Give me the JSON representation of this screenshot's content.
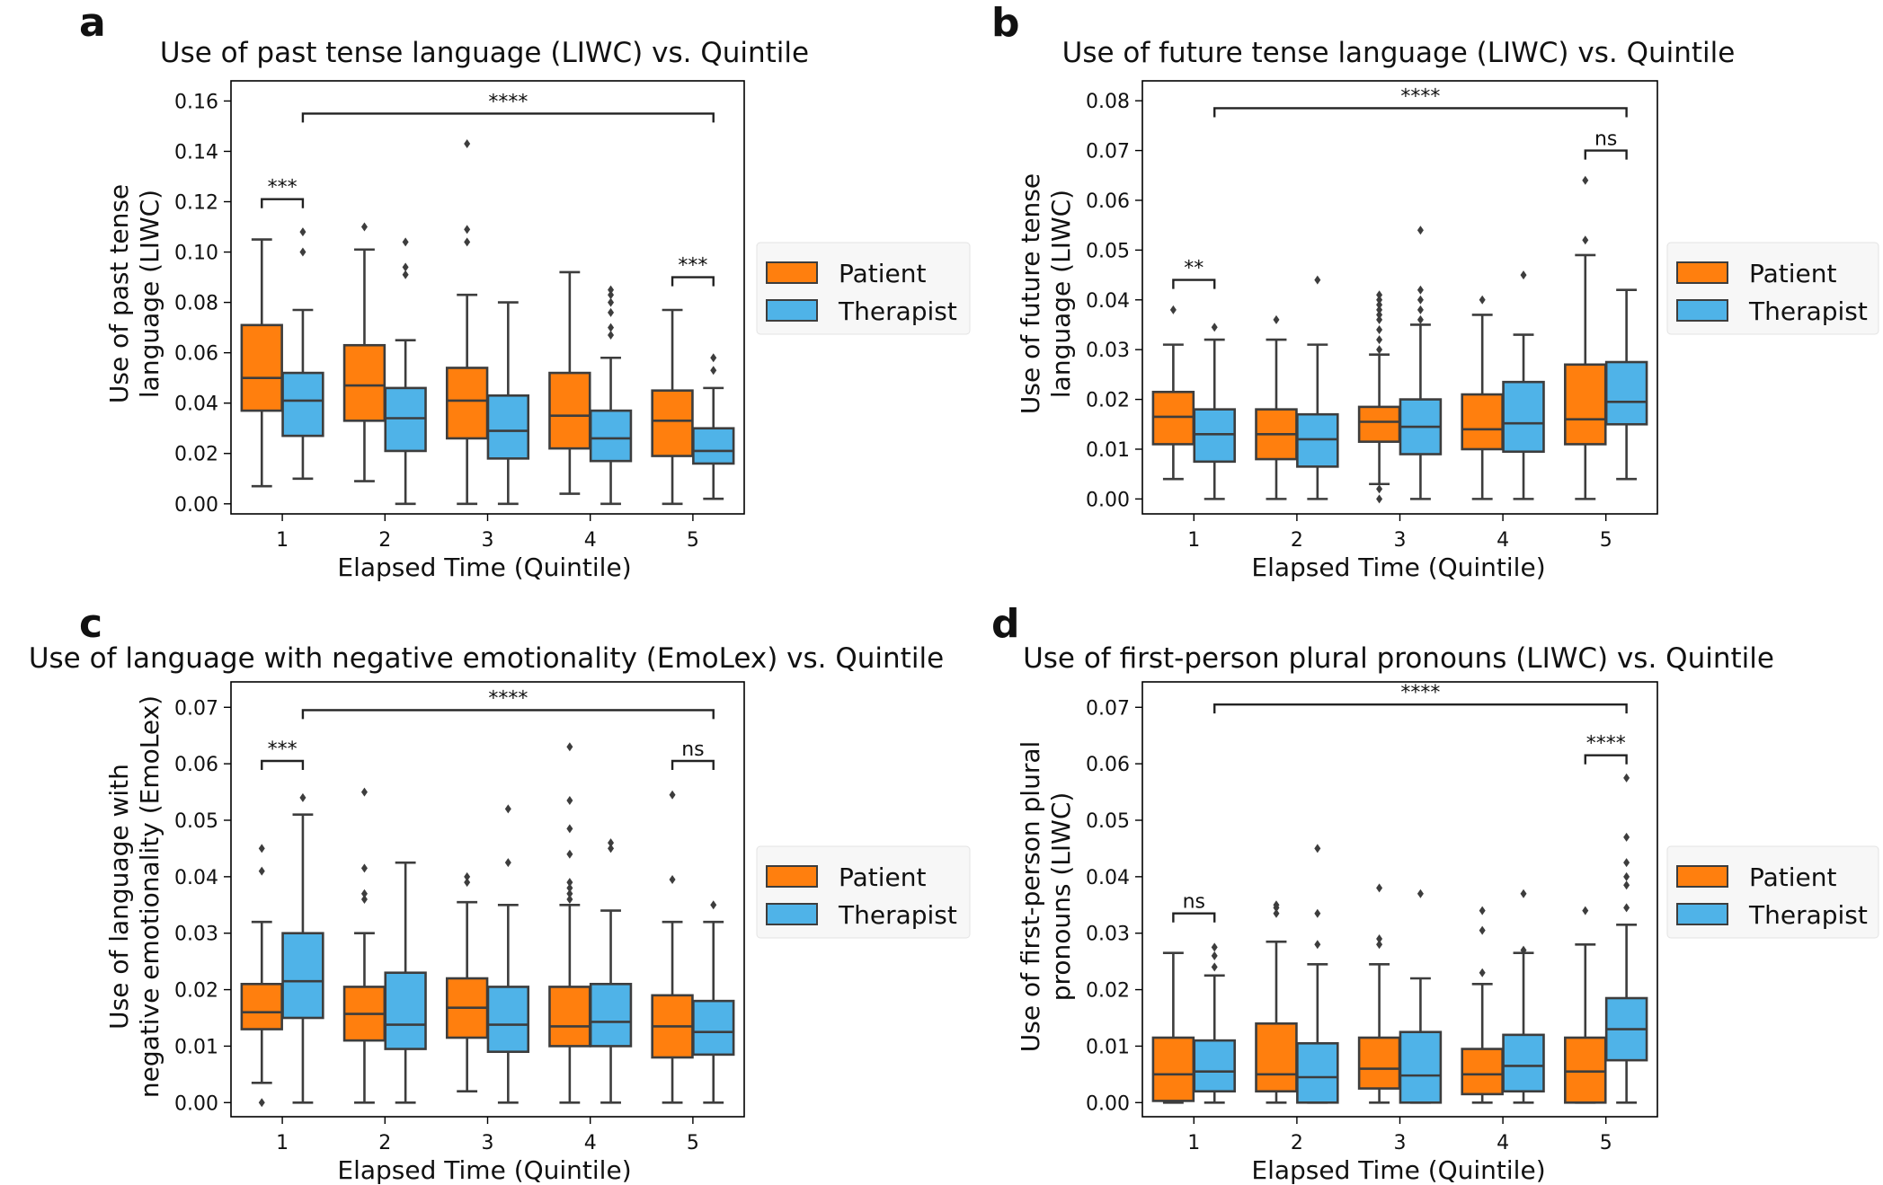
{
  "figure": {
    "colors": {
      "Patient": "#ff7f0e",
      "Therapist": "#4fb3e8",
      "line": "#3d3d3d"
    },
    "legend_labels": [
      "Patient",
      "Therapist"
    ]
  },
  "chart_data": [
    {
      "panel": "a",
      "type": "box",
      "title": "Use of past tense language (LIWC) vs. Quintile",
      "xlabel": "Elapsed Time (Quintile)",
      "ylabel": [
        "Use of past tense",
        "language (LIWC)"
      ],
      "ylim": [
        -0.004,
        0.168
      ],
      "yticks": [
        0.0,
        0.02,
        0.04,
        0.06,
        0.08,
        0.1,
        0.12,
        0.14,
        0.16
      ],
      "tick_decimals": 2,
      "categories": [
        "1",
        "2",
        "3",
        "4",
        "5"
      ],
      "series": [
        {
          "name": "Patient",
          "boxes": [
            {
              "whislo": 0.007,
              "q1": 0.037,
              "med": 0.05,
              "q3": 0.071,
              "whishi": 0.105,
              "fliers": []
            },
            {
              "whislo": 0.009,
              "q1": 0.033,
              "med": 0.047,
              "q3": 0.063,
              "whishi": 0.101,
              "fliers": [
                0.11
              ]
            },
            {
              "whislo": 0.0,
              "q1": 0.026,
              "med": 0.041,
              "q3": 0.054,
              "whishi": 0.083,
              "fliers": [
                0.104,
                0.109,
                0.143
              ]
            },
            {
              "whislo": 0.004,
              "q1": 0.022,
              "med": 0.035,
              "q3": 0.052,
              "whishi": 0.092,
              "fliers": []
            },
            {
              "whislo": 0.0,
              "q1": 0.019,
              "med": 0.033,
              "q3": 0.045,
              "whishi": 0.077,
              "fliers": []
            }
          ]
        },
        {
          "name": "Therapist",
          "boxes": [
            {
              "whislo": 0.01,
              "q1": 0.027,
              "med": 0.041,
              "q3": 0.052,
              "whishi": 0.077,
              "fliers": [
                0.1,
                0.108
              ]
            },
            {
              "whislo": 0.0,
              "q1": 0.021,
              "med": 0.034,
              "q3": 0.046,
              "whishi": 0.065,
              "fliers": [
                0.091,
                0.094,
                0.104
              ]
            },
            {
              "whislo": 0.0,
              "q1": 0.018,
              "med": 0.029,
              "q3": 0.043,
              "whishi": 0.08,
              "fliers": []
            },
            {
              "whislo": 0.0,
              "q1": 0.017,
              "med": 0.026,
              "q3": 0.037,
              "whishi": 0.058,
              "fliers": [
                0.067,
                0.07,
                0.076,
                0.08,
                0.083,
                0.085
              ]
            },
            {
              "whislo": 0.002,
              "q1": 0.016,
              "med": 0.021,
              "q3": 0.03,
              "whishi": 0.046,
              "fliers": [
                0.053,
                0.058
              ]
            }
          ]
        }
      ],
      "annotations": [
        {
          "from": "1-Therapist",
          "to": "5-Therapist",
          "y": 0.155,
          "label": "****"
        },
        {
          "from": "1-Patient",
          "to": "1-Therapist",
          "y": 0.121,
          "label": "***"
        },
        {
          "from": "5-Patient",
          "to": "5-Therapist",
          "y": 0.09,
          "label": "***"
        }
      ]
    },
    {
      "panel": "b",
      "type": "box",
      "title": "Use of future tense language (LIWC) vs. Quintile",
      "xlabel": "Elapsed Time (Quintile)",
      "ylabel": [
        "Use of future tense",
        "language (LIWC)"
      ],
      "ylim": [
        -0.003,
        0.084
      ],
      "yticks": [
        0.0,
        0.01,
        0.02,
        0.03,
        0.04,
        0.05,
        0.06,
        0.07,
        0.08
      ],
      "tick_decimals": 2,
      "categories": [
        "1",
        "2",
        "3",
        "4",
        "5"
      ],
      "series": [
        {
          "name": "Patient",
          "boxes": [
            {
              "whislo": 0.004,
              "q1": 0.011,
              "med": 0.0165,
              "q3": 0.0215,
              "whishi": 0.031,
              "fliers": [
                0.038
              ]
            },
            {
              "whislo": 0.0,
              "q1": 0.008,
              "med": 0.013,
              "q3": 0.018,
              "whishi": 0.032,
              "fliers": [
                0.036
              ]
            },
            {
              "whislo": 0.003,
              "q1": 0.0115,
              "med": 0.0155,
              "q3": 0.0185,
              "whishi": 0.029,
              "fliers": [
                0.0,
                0.002,
                0.03,
                0.032,
                0.034,
                0.036,
                0.037,
                0.038,
                0.039,
                0.04,
                0.041
              ]
            },
            {
              "whislo": 0.0,
              "q1": 0.01,
              "med": 0.014,
              "q3": 0.021,
              "whishi": 0.037,
              "fliers": [
                0.04
              ]
            },
            {
              "whislo": 0.0,
              "q1": 0.011,
              "med": 0.016,
              "q3": 0.027,
              "whishi": 0.049,
              "fliers": [
                0.052,
                0.064
              ]
            }
          ]
        },
        {
          "name": "Therapist",
          "boxes": [
            {
              "whislo": 0.0,
              "q1": 0.0075,
              "med": 0.013,
              "q3": 0.018,
              "whishi": 0.032,
              "fliers": [
                0.0345
              ]
            },
            {
              "whislo": 0.0,
              "q1": 0.0065,
              "med": 0.012,
              "q3": 0.017,
              "whishi": 0.031,
              "fliers": [
                0.044
              ]
            },
            {
              "whislo": 0.0,
              "q1": 0.009,
              "med": 0.0145,
              "q3": 0.02,
              "whishi": 0.035,
              "fliers": [
                0.036,
                0.038,
                0.04,
                0.042,
                0.054
              ]
            },
            {
              "whislo": 0.0,
              "q1": 0.0095,
              "med": 0.0152,
              "q3": 0.0235,
              "whishi": 0.033,
              "fliers": [
                0.045
              ]
            },
            {
              "whislo": 0.004,
              "q1": 0.015,
              "med": 0.0195,
              "q3": 0.0275,
              "whishi": 0.042,
              "fliers": []
            }
          ]
        }
      ],
      "annotations": [
        {
          "from": "1-Therapist",
          "to": "5-Therapist",
          "y": 0.0785,
          "label": "****"
        },
        {
          "from": "5-Patient",
          "to": "5-Therapist",
          "y": 0.07,
          "label": "ns"
        },
        {
          "from": "1-Patient",
          "to": "1-Therapist",
          "y": 0.044,
          "label": "**"
        }
      ]
    },
    {
      "panel": "c",
      "type": "box",
      "title": "Use of language with negative emotionality (EmoLex) vs. Quintile",
      "xlabel": "Elapsed Time (Quintile)",
      "ylabel": [
        "Use of language with",
        "negative emotionality (EmoLex)"
      ],
      "ylim": [
        -0.0025,
        0.0745
      ],
      "yticks": [
        0.0,
        0.01,
        0.02,
        0.03,
        0.04,
        0.05,
        0.06,
        0.07
      ],
      "tick_decimals": 2,
      "categories": [
        "1",
        "2",
        "3",
        "4",
        "5"
      ],
      "series": [
        {
          "name": "Patient",
          "boxes": [
            {
              "whislo": 0.0035,
              "q1": 0.013,
              "med": 0.016,
              "q3": 0.021,
              "whishi": 0.032,
              "fliers": [
                0.0,
                0.041,
                0.045
              ]
            },
            {
              "whislo": 0.0,
              "q1": 0.011,
              "med": 0.0157,
              "q3": 0.0205,
              "whishi": 0.03,
              "fliers": [
                0.036,
                0.037,
                0.0415,
                0.055
              ]
            },
            {
              "whislo": 0.002,
              "q1": 0.0115,
              "med": 0.0168,
              "q3": 0.022,
              "whishi": 0.0355,
              "fliers": [
                0.039,
                0.04
              ]
            },
            {
              "whislo": 0.0,
              "q1": 0.01,
              "med": 0.0135,
              "q3": 0.0205,
              "whishi": 0.035,
              "fliers": [
                0.036,
                0.037,
                0.038,
                0.039,
                0.044,
                0.0485,
                0.0535,
                0.063
              ]
            },
            {
              "whislo": 0.0,
              "q1": 0.008,
              "med": 0.0135,
              "q3": 0.019,
              "whishi": 0.032,
              "fliers": [
                0.0395,
                0.0545
              ]
            }
          ]
        },
        {
          "name": "Therapist",
          "boxes": [
            {
              "whislo": 0.0,
              "q1": 0.015,
              "med": 0.0215,
              "q3": 0.03,
              "whishi": 0.051,
              "fliers": [
                0.054
              ]
            },
            {
              "whislo": 0.0,
              "q1": 0.0095,
              "med": 0.0138,
              "q3": 0.023,
              "whishi": 0.0425,
              "fliers": []
            },
            {
              "whislo": 0.0,
              "q1": 0.009,
              "med": 0.0138,
              "q3": 0.0205,
              "whishi": 0.035,
              "fliers": [
                0.0425,
                0.052
              ]
            },
            {
              "whislo": 0.0,
              "q1": 0.01,
              "med": 0.0143,
              "q3": 0.021,
              "whishi": 0.034,
              "fliers": [
                0.045,
                0.046
              ]
            },
            {
              "whislo": 0.0,
              "q1": 0.0085,
              "med": 0.0125,
              "q3": 0.018,
              "whishi": 0.032,
              "fliers": [
                0.035
              ]
            }
          ]
        }
      ],
      "annotations": [
        {
          "from": "1-Therapist",
          "to": "5-Therapist",
          "y": 0.0695,
          "label": "****"
        },
        {
          "from": "1-Patient",
          "to": "1-Therapist",
          "y": 0.0605,
          "label": "***"
        },
        {
          "from": "5-Patient",
          "to": "5-Therapist",
          "y": 0.0605,
          "label": "ns"
        }
      ]
    },
    {
      "panel": "d",
      "type": "box",
      "title": "Use of first-person plural pronouns (LIWC) vs. Quintile",
      "xlabel": "Elapsed Time (Quintile)",
      "ylabel": [
        "Use of first-person plural",
        "pronouns (LIWC)"
      ],
      "ylim": [
        -0.0025,
        0.0745
      ],
      "yticks": [
        0.0,
        0.01,
        0.02,
        0.03,
        0.04,
        0.05,
        0.06,
        0.07
      ],
      "tick_decimals": 2,
      "categories": [
        "1",
        "2",
        "3",
        "4",
        "5"
      ],
      "series": [
        {
          "name": "Patient",
          "boxes": [
            {
              "whislo": 0.0,
              "q1": 0.0003,
              "med": 0.005,
              "q3": 0.0115,
              "whishi": 0.0265,
              "fliers": []
            },
            {
              "whislo": 0.0,
              "q1": 0.002,
              "med": 0.005,
              "q3": 0.014,
              "whishi": 0.0285,
              "fliers": [
                0.0335,
                0.0345,
                0.035
              ]
            },
            {
              "whislo": 0.0,
              "q1": 0.0025,
              "med": 0.006,
              "q3": 0.0115,
              "whishi": 0.0245,
              "fliers": [
                0.028,
                0.029,
                0.038
              ]
            },
            {
              "whislo": 0.0,
              "q1": 0.0015,
              "med": 0.005,
              "q3": 0.0095,
              "whishi": 0.021,
              "fliers": [
                0.023,
                0.0305,
                0.034
              ]
            },
            {
              "whislo": 0.0,
              "q1": 0.0,
              "med": 0.0055,
              "q3": 0.0115,
              "whishi": 0.028,
              "fliers": [
                0.034
              ]
            }
          ]
        },
        {
          "name": "Therapist",
          "boxes": [
            {
              "whislo": 0.0,
              "q1": 0.002,
              "med": 0.0055,
              "q3": 0.011,
              "whishi": 0.0225,
              "fliers": [
                0.024,
                0.026,
                0.0275
              ]
            },
            {
              "whislo": 0.0,
              "q1": 0.0,
              "med": 0.0045,
              "q3": 0.0105,
              "whishi": 0.0245,
              "fliers": [
                0.028,
                0.0335,
                0.045
              ]
            },
            {
              "whislo": 0.0,
              "q1": 0.0,
              "med": 0.0048,
              "q3": 0.0125,
              "whishi": 0.022,
              "fliers": [
                0.037
              ]
            },
            {
              "whislo": 0.0,
              "q1": 0.002,
              "med": 0.0065,
              "q3": 0.012,
              "whishi": 0.0265,
              "fliers": [
                0.027,
                0.037
              ]
            },
            {
              "whislo": 0.0,
              "q1": 0.0075,
              "med": 0.013,
              "q3": 0.0185,
              "whishi": 0.0315,
              "fliers": [
                0.0345,
                0.0385,
                0.04,
                0.0425,
                0.047,
                0.0575
              ]
            }
          ]
        }
      ],
      "annotations": [
        {
          "from": "1-Therapist",
          "to": "5-Therapist",
          "y": 0.0705,
          "label": "****"
        },
        {
          "from": "5-Patient",
          "to": "5-Therapist",
          "y": 0.0615,
          "label": "****"
        },
        {
          "from": "1-Patient",
          "to": "1-Therapist",
          "y": 0.0335,
          "label": "ns"
        }
      ]
    }
  ]
}
